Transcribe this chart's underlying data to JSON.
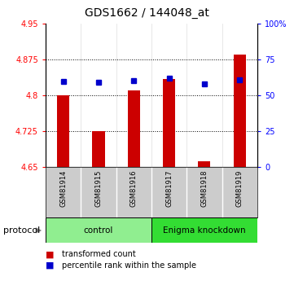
{
  "title": "GDS1662 / 144048_at",
  "samples": [
    "GSM81914",
    "GSM81915",
    "GSM81916",
    "GSM81917",
    "GSM81918",
    "GSM81919"
  ],
  "red_values": [
    4.8,
    4.725,
    4.81,
    4.835,
    4.662,
    4.885
  ],
  "blue_values": [
    4.83,
    4.827,
    4.832,
    4.836,
    4.825,
    4.833
  ],
  "ylim_left": [
    4.65,
    4.95
  ],
  "ylim_right": [
    0,
    100
  ],
  "yticks_left": [
    4.65,
    4.725,
    4.8,
    4.875,
    4.95
  ],
  "ytick_labels_left": [
    "4.65",
    "4.725",
    "4.8",
    "4.875",
    "4.95"
  ],
  "yticks_right": [
    0,
    25,
    50,
    75,
    100
  ],
  "ytick_labels_right": [
    "0",
    "25",
    "50",
    "75",
    "100%"
  ],
  "hlines": [
    4.725,
    4.8,
    4.875
  ],
  "groups": [
    {
      "label": "control",
      "indices": [
        0,
        1,
        2
      ],
      "color": "#90EE90"
    },
    {
      "label": "Enigma knockdown",
      "indices": [
        3,
        4,
        5
      ],
      "color": "#33DD33"
    }
  ],
  "protocol_label": "protocol",
  "legend_red": "transformed count",
  "legend_blue": "percentile rank within the sample",
  "bar_color": "#CC0000",
  "dot_color": "#0000CC",
  "bar_bottom": 4.65,
  "background_color": "#ffffff",
  "plot_bg": "#ffffff",
  "sample_area_color": "#CCCCCC",
  "grid_color": "#000000"
}
